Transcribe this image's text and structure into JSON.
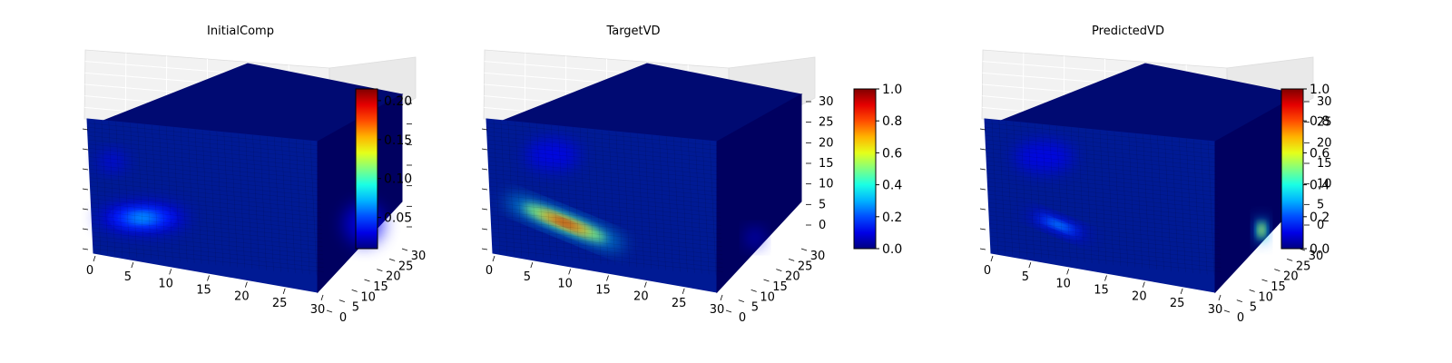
{
  "chart_data": [
    {
      "type": "voxel3d",
      "title": "InitialComp",
      "x_ticks": [
        "0",
        "5",
        "10",
        "15",
        "20",
        "25",
        "30"
      ],
      "y_ticks": [
        "0",
        "5",
        "10",
        "15",
        "20",
        "25",
        "30"
      ],
      "z_ticks": [],
      "grid": true,
      "colormap": "jet",
      "colorbar": {
        "range": [
          0.01,
          0.215
        ],
        "ticks": [
          "0.05",
          "0.10",
          "0.15",
          "0.20"
        ],
        "tick_values": [
          0.05,
          0.1,
          0.15,
          0.2
        ],
        "placement": "right"
      },
      "features": [
        {
          "face": "front",
          "u": 0.22,
          "v": 0.7,
          "ru": 0.17,
          "rv": 0.1,
          "value": 0.06
        },
        {
          "face": "front",
          "u": 0.1,
          "v": 0.3,
          "ru": 0.05,
          "rv": 0.06,
          "value": 0.03
        },
        {
          "face": "side",
          "u": 0.55,
          "v": 0.72,
          "ru": 0.18,
          "rv": 0.12,
          "value": 0.04
        }
      ]
    },
    {
      "type": "voxel3d",
      "title": "TargetVD",
      "x_ticks": [
        "0",
        "5",
        "10",
        "15",
        "20",
        "25",
        "30"
      ],
      "y_ticks": [
        "0",
        "5",
        "10",
        "15",
        "20",
        "25",
        "30"
      ],
      "z_ticks": [
        "0",
        "5",
        "10",
        "15",
        "20",
        "25",
        "30"
      ],
      "grid": true,
      "colormap": "jet",
      "colorbar": {
        "range": [
          0.0,
          1.0
        ],
        "ticks": [
          "0.0",
          "0.2",
          "0.4",
          "0.6",
          "0.8",
          "1.0"
        ],
        "tick_values": [
          0.0,
          0.2,
          0.4,
          0.6,
          0.8,
          1.0
        ],
        "placement": "right"
      },
      "features": [
        {
          "face": "front",
          "u": 0.32,
          "v": 0.72,
          "ru": 0.24,
          "rv": 0.055,
          "rotate": 22,
          "value": 0.95
        },
        {
          "face": "front",
          "u": 0.28,
          "v": 0.22,
          "ru": 0.1,
          "rv": 0.1,
          "value": 0.1
        },
        {
          "face": "side",
          "u": 0.45,
          "v": 0.78,
          "ru": 0.07,
          "rv": 0.05,
          "value": 0.15
        }
      ]
    },
    {
      "type": "voxel3d",
      "title": "PredictedVD",
      "x_ticks": [
        "0",
        "5",
        "10",
        "15",
        "20",
        "25",
        "30"
      ],
      "y_ticks": [
        "0",
        "5",
        "10",
        "15",
        "20",
        "25",
        "30"
      ],
      "z_ticks": [
        "0",
        "5",
        "10",
        "15",
        "20",
        "25",
        "30"
      ],
      "grid": true,
      "colormap": "jet",
      "colorbar": {
        "range": [
          0.0,
          1.0
        ],
        "ticks": [
          "0.0",
          "0.2",
          "0.4",
          "0.6",
          "0.8",
          "1.0"
        ],
        "tick_values": [
          0.0,
          0.2,
          0.4,
          0.6,
          0.8,
          1.0
        ],
        "placement": "right"
      },
      "features": [
        {
          "face": "front",
          "u": 0.3,
          "v": 0.74,
          "ru": 0.13,
          "rv": 0.04,
          "rotate": 22,
          "value": 0.3
        },
        {
          "face": "front",
          "u": 0.25,
          "v": 0.24,
          "ru": 0.11,
          "rv": 0.1,
          "value": 0.1
        },
        {
          "face": "side",
          "u": 0.55,
          "v": 0.76,
          "ru": 0.05,
          "rv": 0.07,
          "value": 0.75
        }
      ]
    }
  ]
}
